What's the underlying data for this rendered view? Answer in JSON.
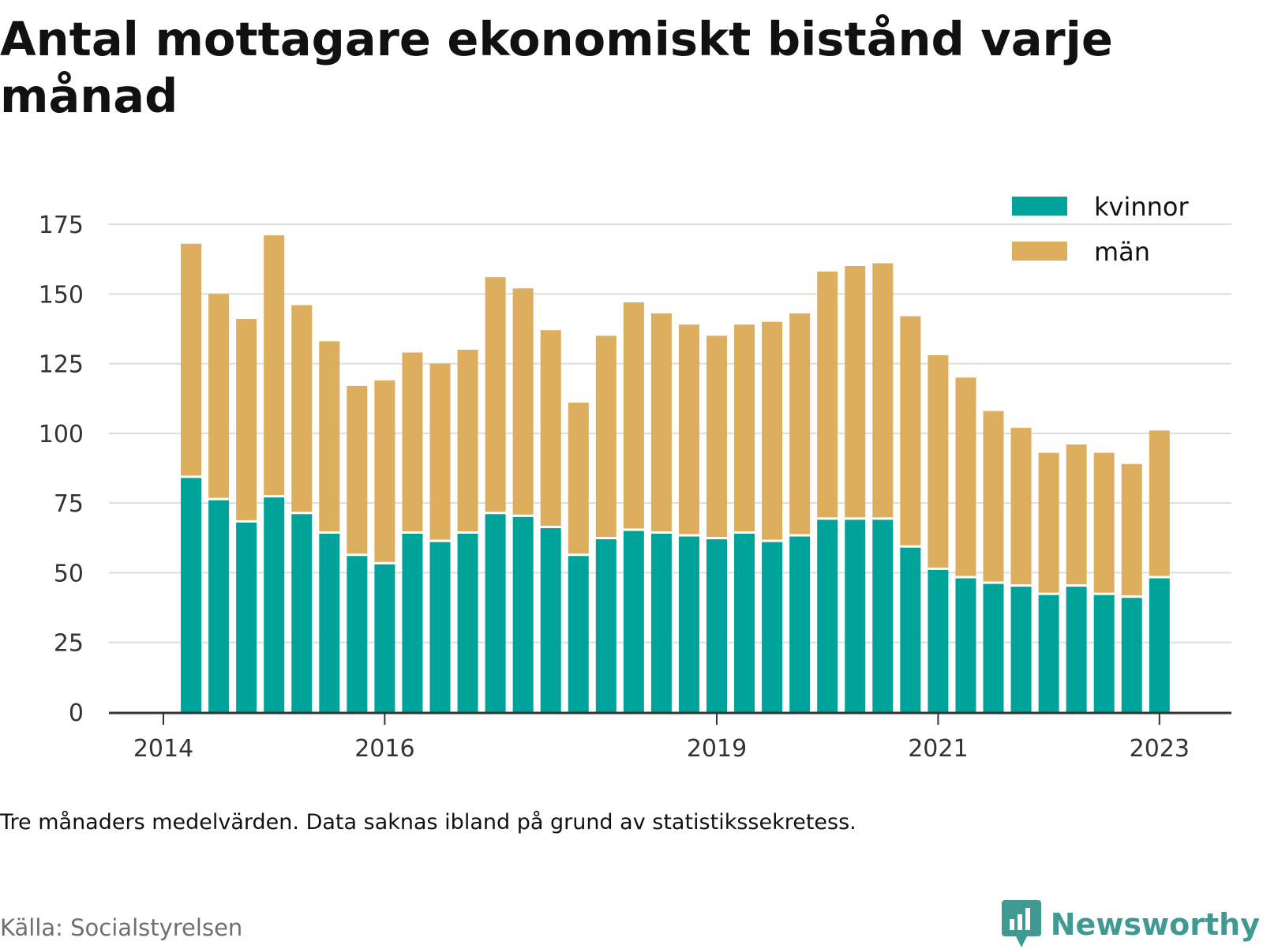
{
  "title": "Antal mottagare ekonomiskt bistånd varje månad",
  "note": "Tre månaders medelvärden. Data saknas ibland på grund av statistikssekretess.",
  "source": "Källa: Socialstyrelsen",
  "brand": "Newsworthy",
  "colors": {
    "kvinnor": "#00a399",
    "man": "#dcae5d",
    "grid": "#dddddd",
    "axis": "#333333",
    "brand": "#3f9b92"
  },
  "chart_data": {
    "type": "bar",
    "stacked": true,
    "x_ticks": [
      "2014",
      "2016",
      "2019",
      "2021",
      "2023"
    ],
    "y_ticks": [
      0,
      25,
      50,
      75,
      100,
      125,
      150,
      175
    ],
    "ylim": [
      0,
      175
    ],
    "grid": true,
    "legend_position": "top-right",
    "series": [
      {
        "name": "kvinnor",
        "values": [
          84,
          76,
          68,
          77,
          71,
          64,
          56,
          53,
          64,
          61,
          64,
          71,
          70,
          66,
          56,
          62,
          65,
          64,
          63,
          62,
          64,
          61,
          63,
          69,
          69,
          69,
          59,
          51,
          48,
          46,
          45,
          42,
          45,
          42,
          41,
          48
        ]
      },
      {
        "name": "män",
        "values": [
          84,
          74,
          73,
          94,
          75,
          69,
          61,
          66,
          65,
          64,
          66,
          85,
          82,
          71,
          55,
          73,
          82,
          79,
          76,
          73,
          75,
          79,
          80,
          89,
          91,
          92,
          83,
          77,
          72,
          62,
          57,
          51,
          51,
          51,
          48,
          53
        ]
      }
    ],
    "x_tick_positions": [
      0,
      8,
      20,
      28,
      36
    ],
    "bar_positions": [
      1,
      2,
      3,
      4,
      5,
      6,
      7,
      8,
      9,
      10,
      11,
      12,
      13,
      14,
      15,
      16,
      17,
      18,
      19,
      20,
      21,
      22,
      23,
      24,
      25,
      26,
      27,
      28,
      29,
      30,
      31,
      32,
      33,
      34,
      35,
      36
    ]
  }
}
